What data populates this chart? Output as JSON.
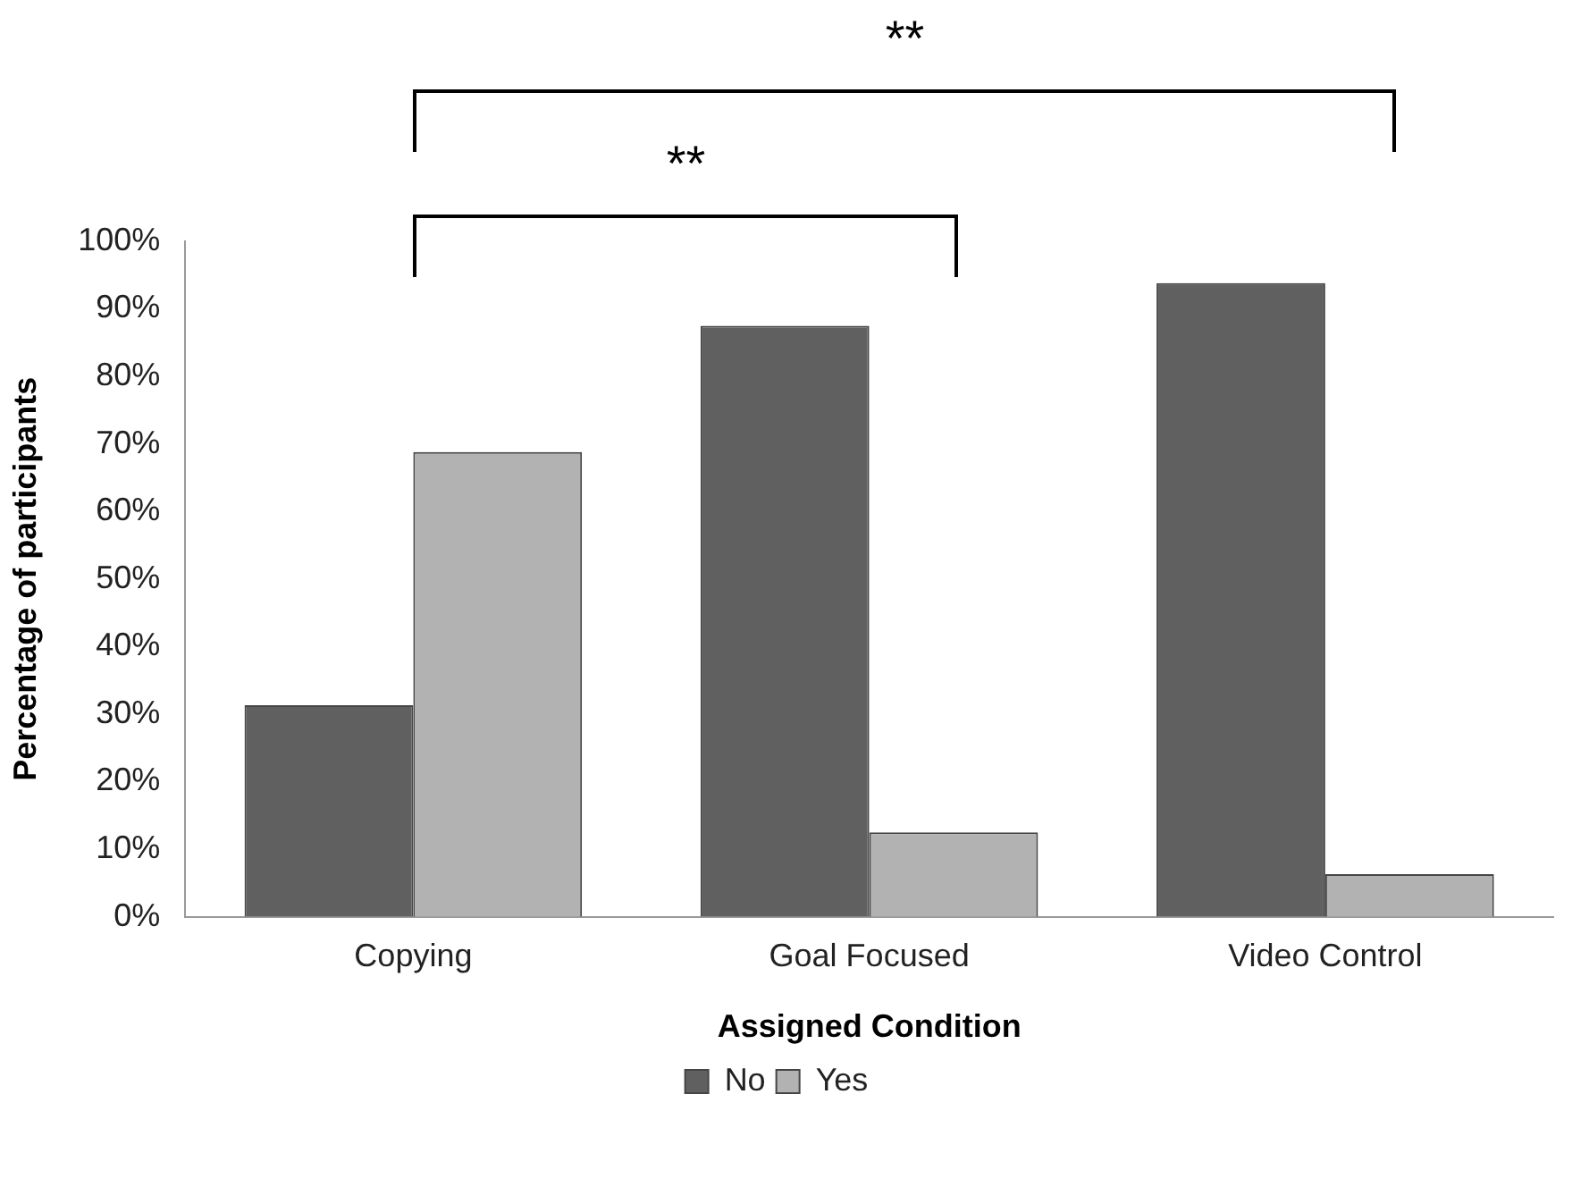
{
  "chart_data": {
    "type": "bar",
    "xlabel": "Assigned Condition",
    "ylabel": "Percentage of participants",
    "categories": [
      "Copying",
      "Goal Focused",
      "Video Control"
    ],
    "series": [
      {
        "name": "No",
        "color": "#606060",
        "values": [
          31.3,
          87.5,
          93.8
        ]
      },
      {
        "name": "Yes",
        "color": "#b2b2b2",
        "values": [
          68.8,
          12.5,
          6.3
        ]
      }
    ],
    "ylim": [
      0,
      100
    ],
    "yticks": [
      {
        "value": 0,
        "label": "0%"
      },
      {
        "value": 10,
        "label": "10%"
      },
      {
        "value": 20,
        "label": "20%"
      },
      {
        "value": 30,
        "label": "30%"
      },
      {
        "value": 40,
        "label": "40%"
      },
      {
        "value": 50,
        "label": "50%"
      },
      {
        "value": 60,
        "label": "60%"
      },
      {
        "value": 70,
        "label": "70%"
      },
      {
        "value": 80,
        "label": "80%"
      },
      {
        "value": 90,
        "label": "90%"
      },
      {
        "value": 100,
        "label": "100%"
      }
    ],
    "annotations": [
      "**",
      "**"
    ],
    "grid": false,
    "legend": "bottom"
  }
}
